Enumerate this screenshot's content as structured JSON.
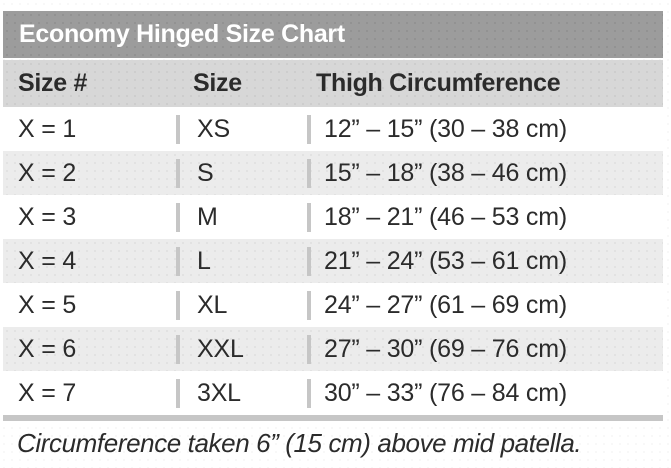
{
  "title": "Economy Hinged Size Chart",
  "table": {
    "headers": [
      "Size #",
      "Size",
      "Thigh Circumference"
    ],
    "rows": [
      {
        "size_num": "X = 1",
        "size": "XS",
        "circumference": "12” – 15” (30 – 38 cm)"
      },
      {
        "size_num": "X = 2",
        "size": "S",
        "circumference": "15” – 18” (38 – 46 cm)"
      },
      {
        "size_num": "X = 3",
        "size": "M",
        "circumference": "18” – 21” (46 – 53 cm)"
      },
      {
        "size_num": "X = 4",
        "size": "L",
        "circumference": "21” – 24” (53 – 61 cm)"
      },
      {
        "size_num": "X = 5",
        "size": "XL",
        "circumference": "24” – 27” (61 – 69 cm)"
      },
      {
        "size_num": "X = 6",
        "size": "XXL",
        "circumference": "27” – 30” (69 – 76 cm)"
      },
      {
        "size_num": "X = 7",
        "size": "3XL",
        "circumference": "30” – 33” (76 – 84 cm)"
      }
    ]
  },
  "footnote": "Circumference taken 6” (15 cm) above mid patella.",
  "colors": {
    "title_bar_bg": "#9c9c9c",
    "title_text": "#ffffff",
    "header_bg": "#d7d7d7",
    "row_alt_bg": "#ececec",
    "divider": "#c6c6c6",
    "text_dark": "#2b2b2b"
  }
}
